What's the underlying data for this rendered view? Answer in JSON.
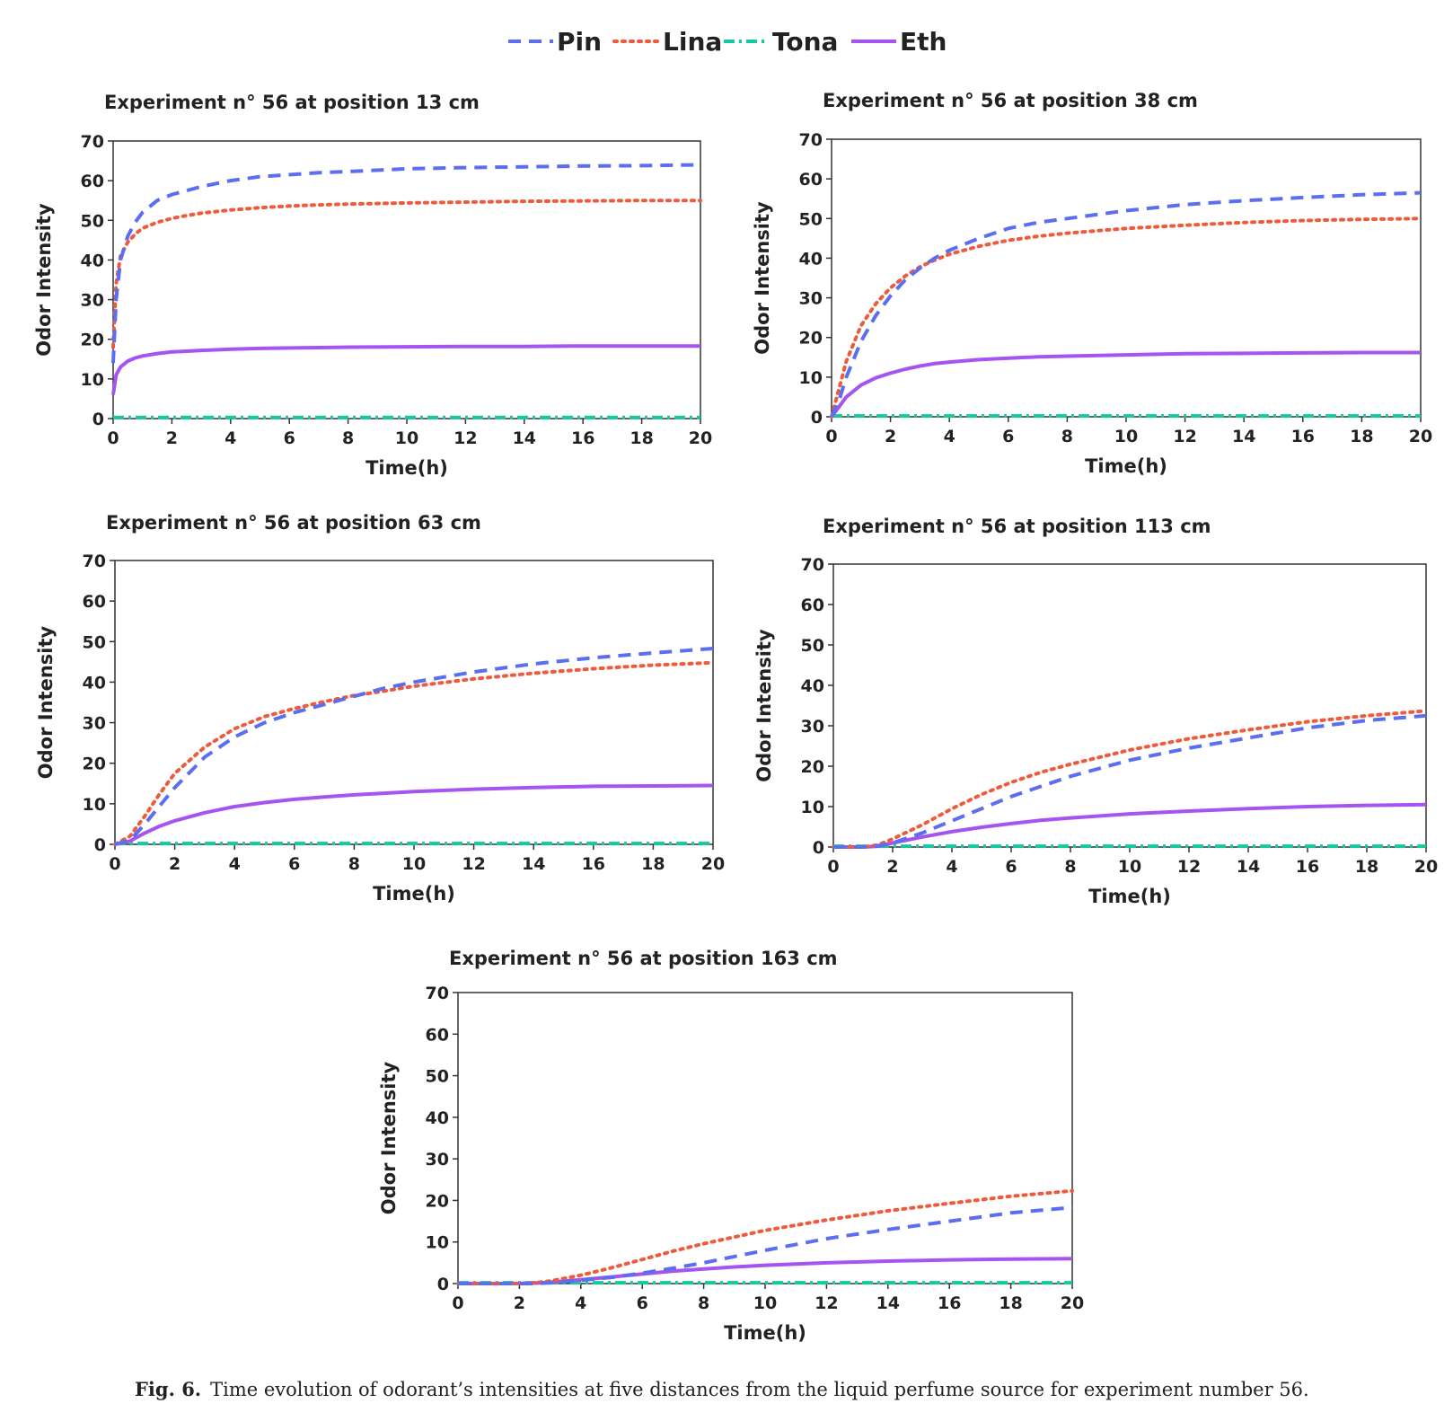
{
  "legend": [
    {
      "name": "Pin",
      "color": "#5b6ef0",
      "style": "dashed"
    },
    {
      "name": "Lina",
      "color": "#f05a3c",
      "style": "dotted"
    },
    {
      "name": "Tona",
      "color": "#14c8a0",
      "style": "dashdot"
    },
    {
      "name": "Eth",
      "color": "#a455f0",
      "style": "solid"
    }
  ],
  "caption": {
    "label": "Fig. 6.",
    "text": "Time evolution of odorant’s intensities at five distances from the liquid perfume source for experiment number 56."
  },
  "chart_data": [
    {
      "type": "line",
      "title": "Experiment n° 56 at position 13 cm",
      "xlabel": "Time(h)",
      "ylabel": "Odor Intensity",
      "xlim": [
        0,
        20
      ],
      "ylim": [
        0,
        70
      ],
      "xticks": [
        0,
        2,
        4,
        6,
        8,
        10,
        12,
        14,
        16,
        18,
        20
      ],
      "yticks": [
        0,
        10,
        20,
        30,
        40,
        50,
        60,
        70
      ],
      "x": [
        0,
        0.1,
        0.25,
        0.5,
        0.75,
        1,
        1.5,
        2,
        2.5,
        3,
        4,
        5,
        6,
        7,
        8,
        10,
        12,
        14,
        16,
        18,
        20
      ],
      "series": [
        {
          "name": "Pin",
          "values": [
            14,
            30,
            40,
            46,
            49.5,
            52,
            55,
            56.5,
            57.5,
            58.5,
            60,
            61,
            61.5,
            62,
            62.3,
            63,
            63.3,
            63.5,
            63.7,
            63.8,
            64
          ]
        },
        {
          "name": "Lina",
          "values": [
            18,
            34,
            41,
            44.5,
            46.5,
            48,
            49.5,
            50.5,
            51.2,
            51.8,
            52.6,
            53.2,
            53.6,
            53.9,
            54.1,
            54.4,
            54.6,
            54.8,
            54.9,
            55,
            55
          ]
        },
        {
          "name": "Tona",
          "values": [
            0.3,
            0.3,
            0.3,
            0.3,
            0.3,
            0.3,
            0.3,
            0.3,
            0.3,
            0.3,
            0.3,
            0.3,
            0.3,
            0.3,
            0.3,
            0.3,
            0.3,
            0.3,
            0.3,
            0.3,
            0.3
          ]
        },
        {
          "name": "Eth",
          "values": [
            6,
            11,
            13,
            14.5,
            15.3,
            15.8,
            16.4,
            16.8,
            17,
            17.2,
            17.5,
            17.7,
            17.8,
            17.9,
            18,
            18.1,
            18.2,
            18.2,
            18.3,
            18.3,
            18.3
          ]
        }
      ]
    },
    {
      "type": "line",
      "title": "Experiment n° 56 at position 38 cm",
      "xlabel": "Time(h)",
      "ylabel": "Odor Intensity",
      "xlim": [
        0,
        20
      ],
      "ylim": [
        0,
        70
      ],
      "xticks": [
        0,
        2,
        4,
        6,
        8,
        10,
        12,
        14,
        16,
        18,
        20
      ],
      "yticks": [
        0,
        10,
        20,
        30,
        40,
        50,
        60,
        70
      ],
      "x": [
        0,
        0.25,
        0.5,
        1,
        1.5,
        2,
        2.5,
        3,
        3.5,
        4,
        5,
        6,
        7,
        8,
        10,
        12,
        14,
        16,
        18,
        20
      ],
      "series": [
        {
          "name": "Pin",
          "values": [
            0,
            4,
            10,
            19,
            25.5,
            30.5,
            34.5,
            37.5,
            40,
            42,
            45,
            47.5,
            49,
            50,
            52,
            53.5,
            54.5,
            55.3,
            56,
            56.5
          ]
        },
        {
          "name": "Lina",
          "values": [
            0,
            7,
            14,
            23,
            28.5,
            32.5,
            35.5,
            37.8,
            39.5,
            41,
            43,
            44.5,
            45.5,
            46.3,
            47.5,
            48.3,
            49,
            49.5,
            49.8,
            50
          ]
        },
        {
          "name": "Tona",
          "values": [
            0.2,
            0.2,
            0.2,
            0.2,
            0.2,
            0.2,
            0.2,
            0.2,
            0.2,
            0.2,
            0.2,
            0.2,
            0.2,
            0.2,
            0.2,
            0.2,
            0.2,
            0.2,
            0.2,
            0.2
          ]
        },
        {
          "name": "Eth",
          "values": [
            0,
            2.5,
            5,
            8,
            9.8,
            11,
            12,
            12.8,
            13.4,
            13.8,
            14.4,
            14.8,
            15.1,
            15.3,
            15.6,
            15.9,
            16,
            16.1,
            16.2,
            16.2
          ]
        }
      ]
    },
    {
      "type": "line",
      "title": "Experiment n° 56 at position 63 cm",
      "xlabel": "Time(h)",
      "ylabel": "Odor Intensity",
      "xlim": [
        0,
        20
      ],
      "ylim": [
        0,
        70
      ],
      "xticks": [
        0,
        2,
        4,
        6,
        8,
        10,
        12,
        14,
        16,
        18,
        20
      ],
      "yticks": [
        0,
        10,
        20,
        30,
        40,
        50,
        60,
        70
      ],
      "x": [
        0,
        0.5,
        1,
        1.5,
        2,
        3,
        4,
        5,
        6,
        7,
        8,
        9,
        10,
        12,
        14,
        16,
        18,
        20
      ],
      "series": [
        {
          "name": "Pin",
          "values": [
            0,
            1,
            5,
            9.5,
            14,
            21.5,
            26.5,
            30,
            32.5,
            34.5,
            36.5,
            38.5,
            40,
            42.5,
            44.5,
            46,
            47.2,
            48.3
          ]
        },
        {
          "name": "Lina",
          "values": [
            0,
            2,
            7,
            12.5,
            17.5,
            24,
            28.5,
            31.5,
            33.5,
            35.2,
            36.7,
            37.8,
            39,
            40.8,
            42.2,
            43.3,
            44.2,
            44.8
          ]
        },
        {
          "name": "Tona",
          "values": [
            0.2,
            0.2,
            0.2,
            0.2,
            0.2,
            0.2,
            0.2,
            0.2,
            0.2,
            0.2,
            0.2,
            0.2,
            0.2,
            0.2,
            0.2,
            0.2,
            0.2,
            0.2
          ]
        },
        {
          "name": "Eth",
          "values": [
            0,
            0.8,
            2.8,
            4.5,
            5.8,
            7.8,
            9.3,
            10.3,
            11.1,
            11.7,
            12.2,
            12.6,
            13,
            13.6,
            14,
            14.3,
            14.4,
            14.5
          ]
        }
      ]
    },
    {
      "type": "line",
      "title": "Experiment n° 56 at position 113 cm",
      "xlabel": "Time(h)",
      "ylabel": "Odor Intensity",
      "xlim": [
        0,
        20
      ],
      "ylim": [
        0,
        70
      ],
      "xticks": [
        0,
        2,
        4,
        6,
        8,
        10,
        12,
        14,
        16,
        18,
        20
      ],
      "yticks": [
        0,
        10,
        20,
        30,
        40,
        50,
        60,
        70
      ],
      "x": [
        0,
        1,
        1.5,
        2,
        3,
        4,
        5,
        6,
        7,
        8,
        10,
        12,
        14,
        16,
        18,
        20
      ],
      "series": [
        {
          "name": "Pin",
          "values": [
            0,
            0,
            0.3,
            1,
            3.5,
            6.5,
            9.5,
            12.5,
            15,
            17.5,
            21.5,
            24.5,
            27,
            29.5,
            31.3,
            32.5
          ]
        },
        {
          "name": "Lina",
          "values": [
            0,
            0,
            0.5,
            2,
            5.5,
            9.5,
            13,
            16,
            18.5,
            20.5,
            24,
            26.8,
            29,
            31,
            32.5,
            33.7
          ]
        },
        {
          "name": "Tona",
          "values": [
            0.2,
            0.2,
            0.2,
            0.2,
            0.2,
            0.2,
            0.2,
            0.2,
            0.2,
            0.2,
            0.2,
            0.2,
            0.2,
            0.2,
            0.2,
            0.2
          ]
        },
        {
          "name": "Eth",
          "values": [
            0,
            0,
            0.2,
            1,
            2.5,
            3.8,
            4.9,
            5.8,
            6.6,
            7.2,
            8.2,
            8.9,
            9.5,
            10,
            10.3,
            10.5
          ]
        }
      ]
    },
    {
      "type": "line",
      "title": "Experiment n° 56 at position 163 cm",
      "xlabel": "Time(h)",
      "ylabel": "Odor Intensity",
      "xlim": [
        0,
        20
      ],
      "ylim": [
        0,
        70
      ],
      "xticks": [
        0,
        2,
        4,
        6,
        8,
        10,
        12,
        14,
        16,
        18,
        20
      ],
      "yticks": [
        0,
        10,
        20,
        30,
        40,
        50,
        60,
        70
      ],
      "x": [
        0,
        2,
        2.5,
        3,
        4,
        5,
        6,
        7,
        8,
        9,
        10,
        12,
        14,
        16,
        18,
        20
      ],
      "series": [
        {
          "name": "Pin",
          "values": [
            0,
            0,
            0,
            0.2,
            0.8,
            1.5,
            2.5,
            3.7,
            5,
            6.5,
            8,
            10.8,
            13,
            15,
            17,
            18.3
          ]
        },
        {
          "name": "Lina",
          "values": [
            0,
            0,
            0.2,
            0.6,
            2,
            3.8,
            5.8,
            7.8,
            9.6,
            11.2,
            12.8,
            15.3,
            17.5,
            19.3,
            21,
            22.3
          ]
        },
        {
          "name": "Tona",
          "values": [
            0.2,
            0.2,
            0.2,
            0.2,
            0.2,
            0.2,
            0.2,
            0.2,
            0.2,
            0.2,
            0.2,
            0.2,
            0.2,
            0.2,
            0.2,
            0.2
          ]
        },
        {
          "name": "Eth",
          "values": [
            0,
            0,
            0.1,
            0.3,
            0.9,
            1.6,
            2.3,
            3,
            3.5,
            4,
            4.4,
            5,
            5.4,
            5.7,
            5.9,
            6
          ]
        }
      ]
    }
  ]
}
